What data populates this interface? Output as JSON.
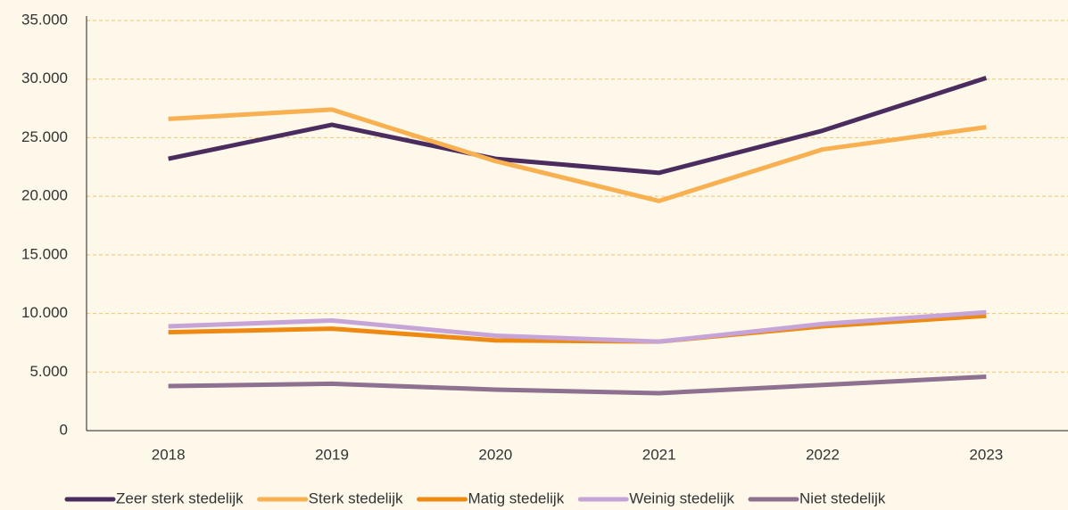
{
  "chart_data": {
    "type": "line",
    "categories": [
      "2018",
      "2019",
      "2020",
      "2021",
      "2022",
      "2023"
    ],
    "series": [
      {
        "name": "Zeer sterk stedelijk",
        "color": "#4a2c5e",
        "values": [
          23200,
          26100,
          23200,
          22000,
          25600,
          30100
        ]
      },
      {
        "name": "Sterk stedelijk",
        "color": "#f9b050",
        "values": [
          26600,
          27400,
          23000,
          19600,
          24000,
          25900
        ]
      },
      {
        "name": "Matig stedelijk",
        "color": "#ee8a12",
        "values": [
          8400,
          8700,
          7700,
          7600,
          8900,
          9800
        ]
      },
      {
        "name": "Weinig stedelijk",
        "color": "#c6a4d8",
        "values": [
          8900,
          9400,
          8100,
          7600,
          9100,
          10100
        ]
      },
      {
        "name": "Niet stedelijk",
        "color": "#8e7090",
        "values": [
          3800,
          4000,
          3500,
          3200,
          3900,
          4600
        ]
      }
    ],
    "ylim": [
      0,
      35000
    ],
    "yticks": [
      0,
      {
        "value": 5000,
        "label": "5.000"
      },
      {
        "value": 10000,
        "label": "10.000"
      },
      {
        "value": 15000,
        "label": "15.000"
      },
      {
        "value": 20000,
        "label": "20.000"
      },
      {
        "value": 25000,
        "label": "25.000"
      },
      {
        "value": 30000,
        "label": "30.000"
      },
      {
        "value": 35000,
        "label": "35.000"
      }
    ],
    "grid": true,
    "legend": "bottom"
  }
}
